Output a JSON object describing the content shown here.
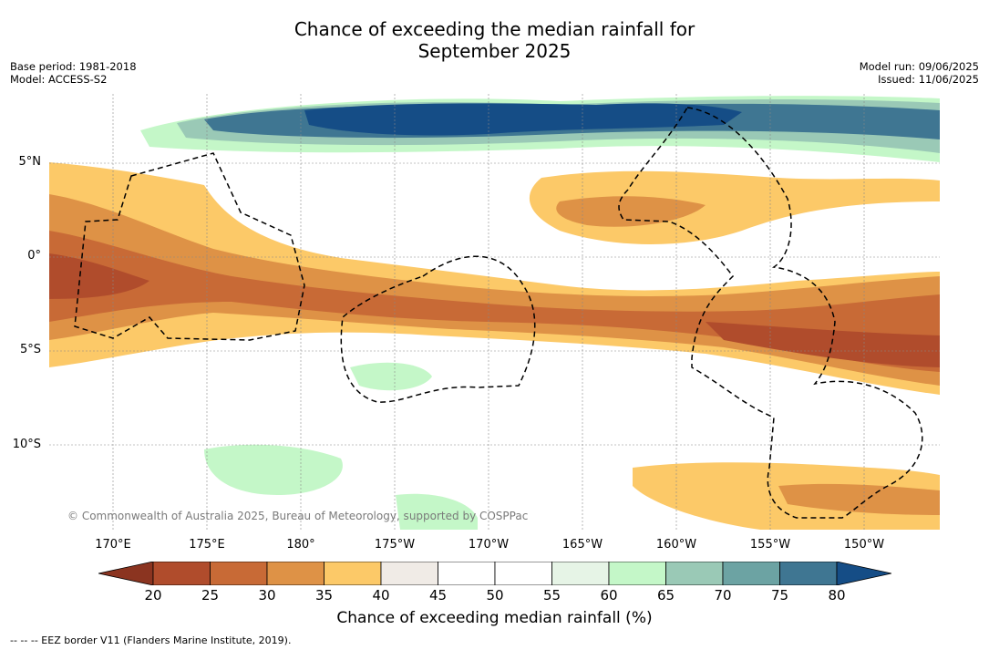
{
  "title_line1": "Chance of exceeding the median rainfall for",
  "title_line2": "September 2025",
  "meta_left": [
    "Base period: 1981-2018",
    "Model: ACCESS-S2"
  ],
  "meta_right": [
    "Model run: 09/06/2025",
    "Issued: 11/06/2025"
  ],
  "lat_ticks": [
    "5°N",
    "0°",
    "5°S",
    "10°S"
  ],
  "lon_ticks": [
    "170°E",
    "175°E",
    "180°",
    "175°W",
    "170°W",
    "165°W",
    "160°W",
    "155°W",
    "150°W"
  ],
  "copyright": "© Commonwealth of Australia 2025, Bureau of Meteorology, supported by COSPPac",
  "colorbar": {
    "labels": [
      "20",
      "25",
      "30",
      "35",
      "40",
      "45",
      "50",
      "55",
      "60",
      "65",
      "70",
      "75",
      "80"
    ],
    "colors": [
      "#8b3420",
      "#b04c2c",
      "#c86a36",
      "#de9246",
      "#fcc968",
      "#f0ebe6",
      "#ffffff",
      "#ffffff",
      "#e6f4e6",
      "#c4f7c8",
      "#9ac9b6",
      "#6ca3a3",
      "#3f7692",
      "#154d86"
    ],
    "title": "Chance of exceeding median rainfall (%)"
  },
  "footnote": "-- -- -- EEZ border V11 (Flanders Marine Institute, 2019)."
}
